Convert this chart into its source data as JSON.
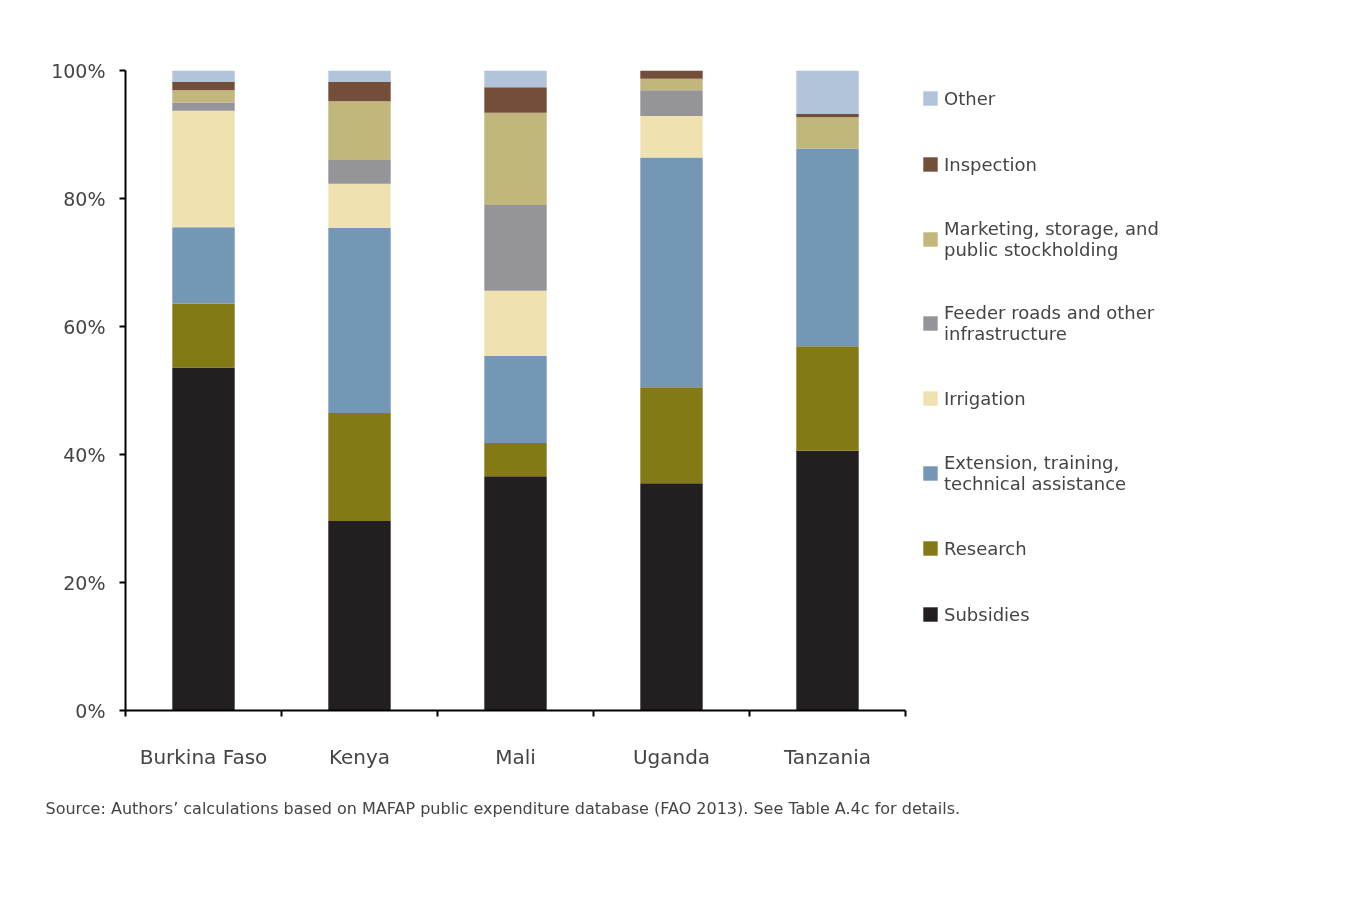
{
  "chart_data": {
    "type": "bar",
    "stacked": true,
    "categories": [
      "Burkina Faso",
      "Kenya",
      "Mali",
      "Uganda",
      "Tanzania"
    ],
    "series": [
      {
        "name": "Subsidies",
        "color": "#231f20",
        "values": [
          53.6,
          29.6,
          36.6,
          35.5,
          40.6
        ]
      },
      {
        "name": "Research",
        "color": "#847a15",
        "values": [
          10.0,
          16.9,
          5.2,
          15.0,
          16.3
        ]
      },
      {
        "name": "Extension, training, technical assistance",
        "color": "#7497b5",
        "values": [
          11.9,
          28.9,
          13.6,
          35.9,
          30.9
        ]
      },
      {
        "name": "Irrigation",
        "color": "#f0e2b0",
        "values": [
          18.2,
          6.9,
          10.2,
          6.5,
          0
        ]
      },
      {
        "name": "Feeder roads and other infrastructure",
        "color": "#959599",
        "values": [
          1.3,
          3.7,
          13.4,
          4.0,
          0
        ]
      },
      {
        "name": "Marketing, storage, and public stockholding",
        "color": "#c1b77c",
        "values": [
          1.9,
          9.2,
          14.4,
          1.8,
          4.9
        ]
      },
      {
        "name": "Inspection",
        "color": "#734f3a",
        "values": [
          1.3,
          3.0,
          4.0,
          1.3,
          0.5
        ]
      },
      {
        "name": "Other",
        "color": "#b1c4d9",
        "values": [
          1.8,
          1.8,
          2.6,
          0,
          6.8
        ]
      }
    ],
    "ylim": [
      0,
      100
    ],
    "yticks": [
      {
        "value": 0,
        "label": "0%"
      },
      {
        "value": 20,
        "label": "20%"
      },
      {
        "value": 40,
        "label": "40%"
      },
      {
        "value": 60,
        "label": "60%"
      },
      {
        "value": 80,
        "label": "80%"
      },
      {
        "value": 100,
        "label": "100%"
      }
    ],
    "grid": false,
    "legend": "right",
    "annotations": [
      "Source: Authors’ calculations based on MAFAP public expenditure database (FAO 2013). See Table A.4c for details."
    ]
  }
}
